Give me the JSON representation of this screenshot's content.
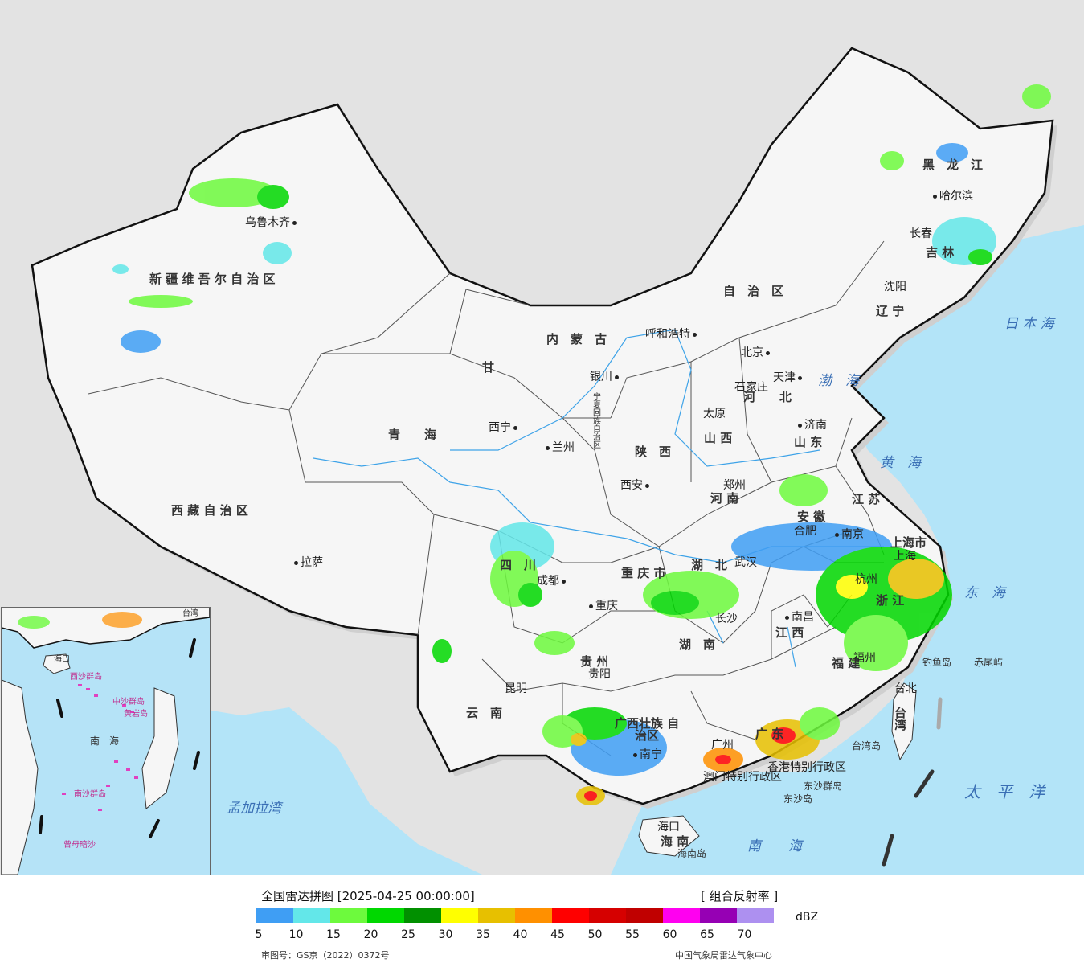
{
  "map": {
    "provinces": [
      {
        "id": "xinjiang",
        "label": "新 疆 维 吾 尔 自 治 区"
      },
      {
        "id": "xizang",
        "label": "西 藏 自 治 区"
      },
      {
        "id": "qinghai",
        "label": "青　　海"
      },
      {
        "id": "gansu",
        "label": "甘"
      },
      {
        "id": "neimenggu",
        "label": "内　蒙　古"
      },
      {
        "id": "zizhi",
        "label": "自　治　区"
      },
      {
        "id": "heilongjiang",
        "label": "黑　龙　江"
      },
      {
        "id": "jilin",
        "label": "吉 林"
      },
      {
        "id": "liaoning",
        "label": "辽 宁"
      },
      {
        "id": "hebei",
        "label": "河　　北"
      },
      {
        "id": "shanxi",
        "label": "山 西"
      },
      {
        "id": "shaanxi",
        "label": "陕　西"
      },
      {
        "id": "shandong",
        "label": "山 东"
      },
      {
        "id": "henan",
        "label": "河 南"
      },
      {
        "id": "jiangsu",
        "label": "江 苏"
      },
      {
        "id": "anhui",
        "label": "安 徽"
      },
      {
        "id": "hubei",
        "label": "湖　北"
      },
      {
        "id": "sichuan",
        "label": "四　川"
      },
      {
        "id": "chongqing",
        "label": "重 庆 市"
      },
      {
        "id": "hunan",
        "label": "湖　南"
      },
      {
        "id": "jiangxi",
        "label": "江 西"
      },
      {
        "id": "zhejiang",
        "label": "浙 江"
      },
      {
        "id": "fujian",
        "label": "福 建"
      },
      {
        "id": "guizhou",
        "label": "贵 州"
      },
      {
        "id": "yunnan",
        "label": "云　南"
      },
      {
        "id": "guangxi",
        "label": "广西壮族 自治区"
      },
      {
        "id": "guangdong",
        "label": "广 东"
      },
      {
        "id": "hainan",
        "label": "海 南"
      },
      {
        "id": "taiwan",
        "label": "台 湾"
      },
      {
        "id": "shanghai",
        "label": "上海市"
      },
      {
        "id": "ningxia",
        "label": "宁夏回族自治区"
      }
    ],
    "cities": [
      {
        "id": "urumqi",
        "label": "乌鲁木齐"
      },
      {
        "id": "lhasa",
        "label": "拉萨"
      },
      {
        "id": "xining",
        "label": "西宁"
      },
      {
        "id": "lanzhou",
        "label": "兰州"
      },
      {
        "id": "yinchuan",
        "label": "银川"
      },
      {
        "id": "hohhot",
        "label": "呼和浩特"
      },
      {
        "id": "beijing",
        "label": "北京"
      },
      {
        "id": "tianjin",
        "label": "天津"
      },
      {
        "id": "shijiazhuang",
        "label": "石家庄"
      },
      {
        "id": "taiyuan",
        "label": "太原"
      },
      {
        "id": "jinan",
        "label": "济南"
      },
      {
        "id": "zhengzhou",
        "label": "郑州"
      },
      {
        "id": "xian",
        "label": "西安"
      },
      {
        "id": "harbin",
        "label": "哈尔滨"
      },
      {
        "id": "changchun",
        "label": "长春"
      },
      {
        "id": "shenyang",
        "label": "沈阳"
      },
      {
        "id": "chengdu",
        "label": "成都"
      },
      {
        "id": "chongqing",
        "label": "重庆"
      },
      {
        "id": "wuhan",
        "label": "武汉"
      },
      {
        "id": "hefei",
        "label": "合肥"
      },
      {
        "id": "nanjing",
        "label": "南京"
      },
      {
        "id": "shanghai",
        "label": "上海"
      },
      {
        "id": "hangzhou",
        "label": "杭州"
      },
      {
        "id": "nanchang",
        "label": "南昌"
      },
      {
        "id": "changsha",
        "label": "长沙"
      },
      {
        "id": "fuzhou",
        "label": "福州"
      },
      {
        "id": "taibei",
        "label": "台北"
      },
      {
        "id": "guiyang",
        "label": "贵阳"
      },
      {
        "id": "kunming",
        "label": "昆明"
      },
      {
        "id": "nanning",
        "label": "南宁"
      },
      {
        "id": "guangzhou",
        "label": "广州"
      },
      {
        "id": "haikou",
        "label": "海口"
      },
      {
        "id": "hongkong",
        "label": "香港特别行政区"
      },
      {
        "id": "macao",
        "label": "澳门特别行政区"
      }
    ],
    "seas": [
      {
        "id": "bohai",
        "label": "渤　海"
      },
      {
        "id": "huanghai",
        "label": "黄　海"
      },
      {
        "id": "donghai",
        "label": "东　海"
      },
      {
        "id": "nanhai",
        "label": "南　　海"
      },
      {
        "id": "taipingyang",
        "label": "太　平　洋"
      },
      {
        "id": "ribenhai",
        "label": "日 本 海"
      },
      {
        "id": "mengjialawan",
        "label": "孟加拉湾"
      }
    ],
    "islands": [
      {
        "id": "diaoyudao",
        "label": "钓鱼岛"
      },
      {
        "id": "chiweiyu",
        "label": "赤尾屿"
      },
      {
        "id": "taiwandao",
        "label": "台湾岛"
      },
      {
        "id": "dongshaqundao",
        "label": "东沙群岛"
      },
      {
        "id": "dongshadao",
        "label": "东沙岛"
      },
      {
        "id": "hainandao",
        "label": "海南岛"
      }
    ],
    "inset_labels": [
      {
        "id": "inset-nanhai",
        "label": "南　海"
      },
      {
        "id": "inset-xisha",
        "label": "西沙群岛"
      },
      {
        "id": "inset-zhongsha",
        "label": "中沙群岛"
      },
      {
        "id": "inset-huangyan",
        "label": "黄岩岛"
      },
      {
        "id": "inset-nansha",
        "label": "南沙群岛"
      },
      {
        "id": "inset-zengmu",
        "label": "曾母暗沙"
      },
      {
        "id": "inset-haikou",
        "label": "海口"
      },
      {
        "id": "inset-taiwan",
        "label": "台湾"
      }
    ]
  },
  "legend": {
    "title": "全国雷达拼图 [2025-04-25 00:00:00]",
    "product": "[ 组合反射率 ]",
    "unit": "dBZ",
    "colors": [
      "#3f9ef4",
      "#63e7e9",
      "#6dfa3d",
      "#00d800",
      "#019000",
      "#ffff00",
      "#e7c000",
      "#ff9000",
      "#ff0000",
      "#d60000",
      "#c00000",
      "#ff00f0",
      "#9600b4",
      "#ad90f0"
    ],
    "ticks": [
      "5",
      "10",
      "15",
      "20",
      "25",
      "30",
      "35",
      "40",
      "45",
      "50",
      "55",
      "60",
      "65",
      "70"
    ],
    "map_review_no": "审图号：GS京（2022）0372号",
    "source": "中国气象局雷达气象中心"
  }
}
